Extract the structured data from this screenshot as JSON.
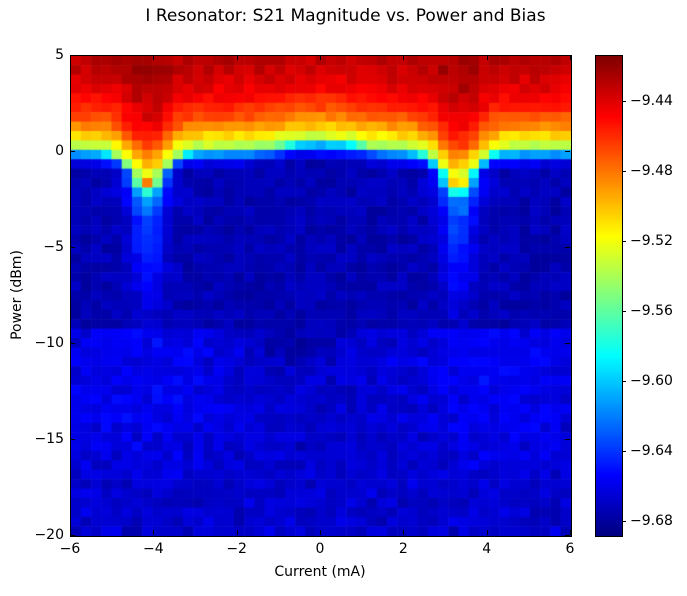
{
  "chart_data": {
    "type": "heatmap",
    "title": "I Resonator: S21 Magnitude vs. Power and Bias",
    "xlabel": "Current (mA)",
    "ylabel": "Power (dBm)",
    "xlim": [
      -6,
      6
    ],
    "ylim": [
      -20,
      5
    ],
    "x_tick_values": [
      -6,
      -4,
      -2,
      0,
      2,
      4,
      6
    ],
    "x_tick_labels": [
      "−6",
      "−4",
      "−2",
      "0",
      "2",
      "4",
      "6"
    ],
    "y_tick_values": [
      5,
      0,
      -5,
      -10,
      -15,
      -20
    ],
    "y_tick_labels": [
      "5",
      "0",
      "−5",
      "−10",
      "−15",
      "−20"
    ],
    "colormap": "jet",
    "value_range": [
      -9.688,
      -9.414
    ],
    "colorbar_tick_values": [
      -9.44,
      -9.48,
      -9.52,
      -9.56,
      -9.6,
      -9.64,
      -9.68
    ],
    "colorbar_tick_labels": [
      "−9.44",
      "−9.48",
      "−9.52",
      "−9.56",
      "−9.60",
      "−9.64",
      "−9.68"
    ],
    "grid": {
      "cols": 49,
      "rows": 51
    },
    "features": {
      "background_level_db": -9.67,
      "high_power_level_db": -9.43,
      "transition_power_dbm": 0.15,
      "center_bump": {
        "current_mA": 0.0,
        "extra_power": 0.45,
        "width_mA": 0.9
      },
      "resonance_dips": [
        {
          "current_mA": -4.15,
          "depth_power": 1.7,
          "width_mA": 0.4,
          "streak_depth_power": 8.5
        },
        {
          "current_mA": 3.3,
          "depth_power": 1.7,
          "width_mA": 0.4,
          "streak_depth_power": 8.5
        }
      ],
      "noise_floor_band_power_dbm": -9.4
    }
  }
}
